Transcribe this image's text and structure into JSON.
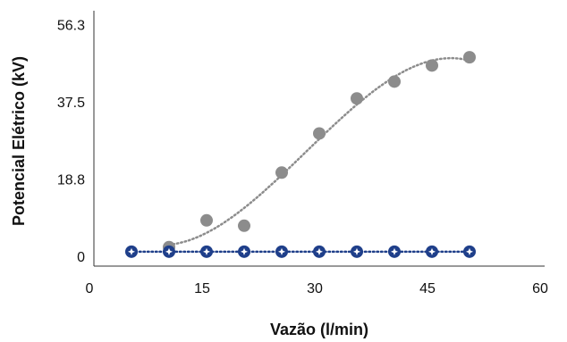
{
  "chart_data": {
    "type": "scatter",
    "x_label": "Vazão (l/min)",
    "y_label": "Potencial Elétrico (kV)",
    "xlim": [
      0,
      60
    ],
    "xticks": [
      0,
      15,
      30,
      45,
      60
    ],
    "ylim": [
      -2,
      60
    ],
    "yticks": [
      0,
      18.8,
      37.5,
      56.3
    ],
    "series": [
      {
        "color": "#8c8c8c",
        "trendline": "polynomial",
        "x": [
          10,
          15,
          20,
          25,
          30,
          35,
          40,
          45,
          50
        ],
        "values": [
          2.6,
          9.1,
          7.8,
          20.7,
          30.2,
          38.7,
          42.8,
          46.7,
          48.7
        ]
      },
      {
        "color": "#1f3f8a",
        "trendline": "linear",
        "x": [
          5,
          10,
          15,
          20,
          25,
          30,
          35,
          40,
          45,
          50
        ],
        "values": [
          1.5,
          1.5,
          1.5,
          1.5,
          1.5,
          1.5,
          1.5,
          1.5,
          1.5,
          1.5
        ]
      }
    ]
  }
}
